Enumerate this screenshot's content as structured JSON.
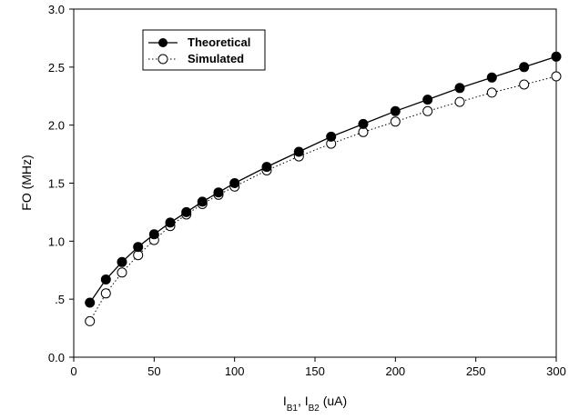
{
  "chart_data": {
    "type": "line",
    "title": "",
    "ylabel": "FO (MHz)",
    "xlabel": {
      "main": "I",
      "sub1": "B1",
      "mid": ", I",
      "sub2": "B2",
      "end": " (uA)"
    },
    "xlim": [
      0,
      300
    ],
    "ylim": [
      0.0,
      3.0
    ],
    "xticks": [
      0,
      50,
      100,
      150,
      200,
      250,
      300
    ],
    "xtick_labels": [
      "0",
      "50",
      "100",
      "150",
      "200",
      "250",
      "300"
    ],
    "yticks": [
      0.0,
      0.5,
      1.0,
      1.5,
      2.0,
      2.5,
      3.0
    ],
    "ytick_labels": [
      "0.0",
      ".5",
      "1.0",
      "1.5",
      "2.0",
      "2.5",
      "3.0"
    ],
    "grid": false,
    "legend_position": "top-left",
    "series": [
      {
        "name": "Theoretical",
        "marker": "filled-circle",
        "line": "solid",
        "color": "#000000",
        "x": [
          10,
          20,
          30,
          40,
          50,
          60,
          70,
          80,
          90,
          100,
          120,
          140,
          160,
          180,
          200,
          220,
          240,
          260,
          280,
          300
        ],
        "y": [
          0.47,
          0.67,
          0.82,
          0.95,
          1.06,
          1.16,
          1.25,
          1.34,
          1.42,
          1.5,
          1.64,
          1.77,
          1.9,
          2.01,
          2.12,
          2.22,
          2.32,
          2.41,
          2.5,
          2.59
        ]
      },
      {
        "name": "Simulated",
        "marker": "open-circle",
        "line": "dotted",
        "color": "#000000",
        "x": [
          10,
          20,
          30,
          40,
          50,
          60,
          70,
          80,
          90,
          100,
          120,
          140,
          160,
          180,
          200,
          220,
          240,
          260,
          280,
          300
        ],
        "y": [
          0.31,
          0.55,
          0.73,
          0.88,
          1.01,
          1.13,
          1.23,
          1.32,
          1.4,
          1.47,
          1.61,
          1.73,
          1.84,
          1.94,
          2.03,
          2.12,
          2.2,
          2.28,
          2.35,
          2.42
        ]
      }
    ]
  }
}
